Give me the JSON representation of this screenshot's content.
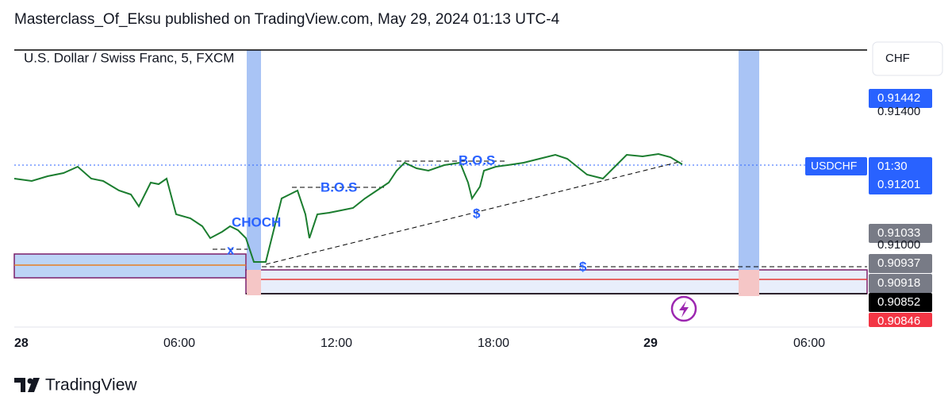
{
  "header": {
    "title": "Masterclass_Of_Eksu published on TradingView.com, May 29, 2024 01:13 UTC-4"
  },
  "chart": {
    "symbol": "U.S. Dollar / Swiss Franc, 5, FXCM",
    "currency": "CHF",
    "ticker": "USDCHF",
    "countdown": "01:30",
    "price_labels": [
      "0.91442",
      "0.91400",
      "0.91201",
      "0.91033",
      "0.91000",
      "0.90937",
      "0.90918",
      "0.90852",
      "0.90846"
    ],
    "time_labels": [
      "28",
      "06:00",
      "12:00",
      "18:00",
      "29",
      "06:00"
    ],
    "annotations": [
      "CHOCH",
      "x",
      "B.O.S",
      "B.O.S",
      "$",
      "$"
    ]
  },
  "footer": {
    "brand": "TradingView"
  }
}
